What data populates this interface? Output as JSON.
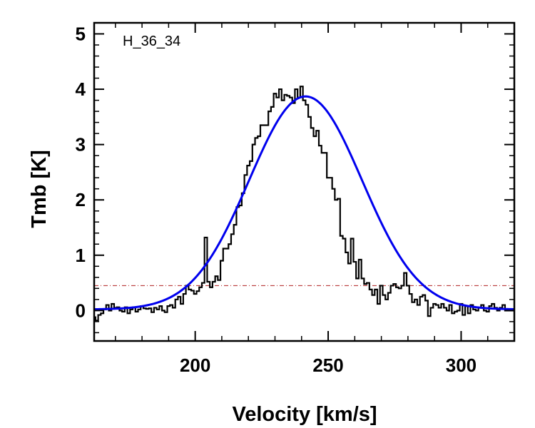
{
  "chart_data": {
    "type": "line",
    "title": "",
    "annotation": "H_36_34",
    "xlabel": "Velocity [km/s]",
    "ylabel": "Tmb [K]",
    "xlim": [
      162,
      320
    ],
    "ylim": [
      -0.55,
      5.2
    ],
    "x_ticks": [
      200,
      250,
      300
    ],
    "y_ticks": [
      0,
      1,
      2,
      3,
      4,
      5
    ],
    "grid": false,
    "legend": "none",
    "colors": {
      "data": "#000000",
      "fit": "#0000ee",
      "threshold": "#b02020"
    },
    "series": [
      {
        "kind": "histogram-step",
        "x": [
          162,
          163,
          164,
          165,
          166,
          167,
          168,
          169,
          170,
          171,
          172,
          173,
          174,
          175,
          176,
          177,
          178,
          179,
          180,
          181,
          182,
          183,
          184,
          185,
          186,
          187,
          188,
          189,
          190,
          191,
          192,
          193,
          194,
          195,
          196,
          197,
          198,
          199,
          200,
          201,
          202,
          203,
          204,
          205,
          206,
          207,
          208,
          209,
          210,
          211,
          212,
          213,
          214,
          215,
          216,
          217,
          218,
          219,
          220,
          221,
          222,
          223,
          224,
          225,
          226,
          227,
          228,
          229,
          230,
          231,
          232,
          233,
          234,
          235,
          236,
          237,
          238,
          239,
          240,
          241,
          242,
          243,
          244,
          245,
          246,
          247,
          248,
          249,
          250,
          251,
          252,
          253,
          254,
          255,
          256,
          257,
          258,
          259,
          260,
          261,
          262,
          263,
          264,
          265,
          266,
          267,
          268,
          269,
          270,
          271,
          272,
          273,
          274,
          275,
          276,
          277,
          278,
          279,
          280,
          281,
          282,
          283,
          284,
          285,
          286,
          287,
          288,
          289,
          290,
          291,
          292,
          293,
          294,
          295,
          296,
          297,
          298,
          299,
          300,
          301,
          302,
          303,
          304,
          305,
          306,
          307,
          308,
          309,
          310,
          311,
          312,
          313,
          314,
          315,
          316,
          317,
          318,
          319,
          320
        ],
        "y": [
          -0.12,
          -0.18,
          -0.08,
          -0.05,
          0.02,
          0.1,
          0.0,
          0.12,
          0.05,
          0.06,
          0.0,
          -0.02,
          0.06,
          -0.05,
          0.02,
          0.06,
          -0.02,
          0.02,
          0.08,
          0.04,
          0.03,
          0.04,
          -0.03,
          0.05,
          0.02,
          0.08,
          0.0,
          -0.03,
          0.08,
          0.1,
          0.05,
          0.2,
          0.25,
          0.12,
          0.3,
          0.45,
          0.38,
          0.36,
          0.3,
          0.35,
          0.42,
          0.5,
          1.32,
          0.52,
          0.42,
          0.52,
          0.62,
          0.55,
          0.9,
          1.12,
          1.12,
          1.2,
          1.38,
          1.55,
          1.87,
          1.9,
          2.12,
          2.45,
          2.62,
          2.7,
          3.0,
          3.12,
          3.15,
          3.35,
          3.35,
          3.35,
          3.6,
          3.68,
          3.92,
          3.85,
          4.0,
          3.8,
          3.9,
          3.88,
          3.85,
          3.75,
          4.0,
          3.85,
          4.05,
          3.8,
          3.72,
          3.5,
          3.3,
          3.15,
          3.25,
          2.98,
          2.85,
          2.85,
          2.4,
          2.4,
          2.2,
          2.0,
          2.02,
          1.35,
          1.3,
          1.05,
          0.85,
          1.3,
          0.88,
          0.58,
          0.92,
          0.58,
          0.48,
          0.5,
          0.38,
          0.28,
          0.38,
          0.12,
          0.45,
          0.28,
          0.2,
          0.32,
          0.45,
          0.48,
          0.42,
          0.4,
          0.45,
          0.68,
          0.45,
          0.3,
          0.15,
          0.2,
          0.1,
          0.25,
          0.28,
          0.18,
          -0.1,
          0.05,
          0.12,
          0.1,
          0.05,
          0.12,
          0.05,
          0.0,
          0.1,
          -0.05,
          -0.02,
          0.0,
          0.12,
          -0.08,
          0.08,
          -0.05,
          0.1,
          0.02,
          0.0,
          0.05,
          0.1,
          0.0,
          -0.02,
          0.08,
          0.12,
          0.05,
          0.0,
          0.05,
          0.1,
          0.0,
          0.0,
          0.0,
          0.0
        ]
      },
      {
        "kind": "gaussian-fit",
        "amplitude": 3.85,
        "center": 241.5,
        "fwhm": 50.0,
        "baseline": 0.02
      },
      {
        "kind": "horizontal-line",
        "y": 0.45
      }
    ]
  }
}
